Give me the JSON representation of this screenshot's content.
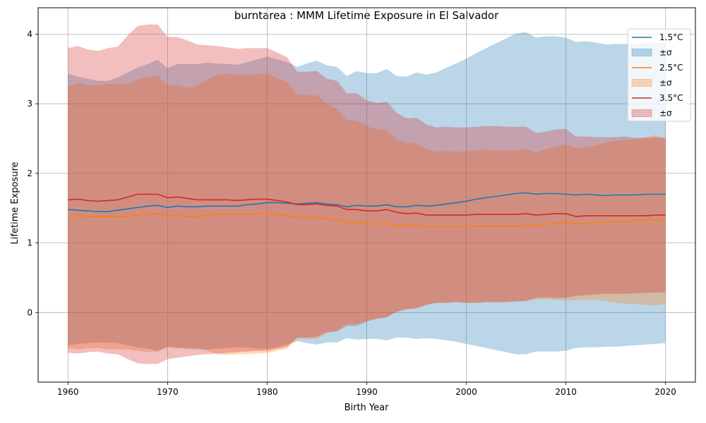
{
  "chart_data": {
    "type": "area",
    "title": "burntarea : MMM Lifetime Exposure in El Salvador",
    "xlabel": "Birth Year",
    "ylabel": "Lifetime Exposure",
    "xlim": [
      1957,
      2023
    ],
    "ylim": [
      -1.0,
      4.38
    ],
    "xticks": [
      1960,
      1970,
      1980,
      1990,
      2000,
      2010,
      2020
    ],
    "xtick_labels": [
      "1960",
      "1970",
      "1980",
      "1990",
      "2000",
      "2010",
      "2020"
    ],
    "yticks": [
      0,
      1,
      2,
      3,
      4
    ],
    "ytick_labels": [
      "0",
      "1",
      "2",
      "3",
      "4"
    ],
    "grid": true,
    "legend_position": "top-right",
    "legend": [
      {
        "label": "1.5°C",
        "kind": "line",
        "color": "#1f77b4"
      },
      {
        "label": "±σ",
        "kind": "patch",
        "color": "#1f77b4"
      },
      {
        "label": "2.5°C",
        "kind": "line",
        "color": "#ff7f0e"
      },
      {
        "label": "±σ",
        "kind": "patch",
        "color": "#ff7f0e"
      },
      {
        "label": "3.5°C",
        "kind": "line",
        "color": "#d62728"
      },
      {
        "label": "±σ",
        "kind": "patch",
        "color": "#d62728"
      }
    ],
    "x": [
      1960,
      1961,
      1962,
      1963,
      1964,
      1965,
      1966,
      1967,
      1968,
      1969,
      1970,
      1971,
      1972,
      1973,
      1974,
      1975,
      1976,
      1977,
      1978,
      1979,
      1980,
      1981,
      1982,
      1983,
      1984,
      1985,
      1986,
      1987,
      1988,
      1989,
      1990,
      1991,
      1992,
      1993,
      1994,
      1995,
      1996,
      1997,
      1998,
      1999,
      2000,
      2001,
      2002,
      2003,
      2004,
      2005,
      2006,
      2007,
      2008,
      2009,
      2010,
      2011,
      2012,
      2013,
      2014,
      2015,
      2016,
      2017,
      2018,
      2019,
      2020
    ],
    "series": [
      {
        "name": "1.5°C",
        "color": "#1f77b4",
        "mean": [
          1.48,
          1.47,
          1.46,
          1.45,
          1.45,
          1.47,
          1.49,
          1.51,
          1.53,
          1.54,
          1.51,
          1.53,
          1.52,
          1.52,
          1.53,
          1.53,
          1.53,
          1.53,
          1.55,
          1.56,
          1.58,
          1.58,
          1.57,
          1.56,
          1.57,
          1.58,
          1.56,
          1.55,
          1.52,
          1.54,
          1.53,
          1.53,
          1.55,
          1.52,
          1.52,
          1.54,
          1.53,
          1.54,
          1.56,
          1.58,
          1.6,
          1.63,
          1.65,
          1.67,
          1.69,
          1.71,
          1.72,
          1.7,
          1.71,
          1.71,
          1.7,
          1.69,
          1.7,
          1.69,
          1.68,
          1.69,
          1.69,
          1.69,
          1.7,
          1.7,
          1.7
        ],
        "upper": [
          3.43,
          3.39,
          3.36,
          3.33,
          3.33,
          3.38,
          3.45,
          3.52,
          3.57,
          3.63,
          3.51,
          3.57,
          3.57,
          3.57,
          3.59,
          3.58,
          3.57,
          3.56,
          3.6,
          3.64,
          3.68,
          3.64,
          3.6,
          3.53,
          3.58,
          3.62,
          3.55,
          3.53,
          3.4,
          3.47,
          3.44,
          3.44,
          3.5,
          3.4,
          3.39,
          3.45,
          3.42,
          3.45,
          3.52,
          3.58,
          3.65,
          3.73,
          3.8,
          3.87,
          3.94,
          4.01,
          4.03,
          3.95,
          3.97,
          3.97,
          3.95,
          3.89,
          3.9,
          3.88,
          3.85,
          3.86,
          3.86,
          3.86,
          3.87,
          3.87,
          3.87
        ],
        "lower": [
          -0.47,
          -0.45,
          -0.44,
          -0.43,
          -0.43,
          -0.44,
          -0.47,
          -0.5,
          -0.52,
          -0.55,
          -0.49,
          -0.51,
          -0.52,
          -0.53,
          -0.53,
          -0.52,
          -0.51,
          -0.5,
          -0.5,
          -0.52,
          -0.52,
          -0.5,
          -0.46,
          -0.41,
          -0.44,
          -0.46,
          -0.43,
          -0.43,
          -0.37,
          -0.39,
          -0.38,
          -0.38,
          -0.4,
          -0.36,
          -0.36,
          -0.38,
          -0.37,
          -0.38,
          -0.4,
          -0.42,
          -0.45,
          -0.48,
          -0.51,
          -0.54,
          -0.57,
          -0.6,
          -0.6,
          -0.56,
          -0.56,
          -0.56,
          -0.55,
          -0.51,
          -0.5,
          -0.5,
          -0.49,
          -0.49,
          -0.48,
          -0.47,
          -0.46,
          -0.45,
          -0.44
        ]
      },
      {
        "name": "2.5°C",
        "color": "#ff7f0e",
        "mean": [
          1.37,
          1.39,
          1.38,
          1.38,
          1.38,
          1.38,
          1.38,
          1.4,
          1.41,
          1.42,
          1.39,
          1.39,
          1.38,
          1.38,
          1.4,
          1.41,
          1.41,
          1.41,
          1.41,
          1.42,
          1.42,
          1.41,
          1.39,
          1.37,
          1.37,
          1.37,
          1.35,
          1.33,
          1.3,
          1.3,
          1.28,
          1.27,
          1.28,
          1.25,
          1.25,
          1.25,
          1.23,
          1.23,
          1.23,
          1.23,
          1.23,
          1.24,
          1.24,
          1.24,
          1.24,
          1.24,
          1.25,
          1.25,
          1.27,
          1.28,
          1.29,
          1.27,
          1.28,
          1.29,
          1.3,
          1.31,
          1.31,
          1.32,
          1.33,
          1.33,
          1.33
        ],
        "upper": [
          3.25,
          3.3,
          3.27,
          3.26,
          3.29,
          3.29,
          3.29,
          3.35,
          3.39,
          3.4,
          3.27,
          3.27,
          3.23,
          3.26,
          3.35,
          3.42,
          3.43,
          3.41,
          3.42,
          3.43,
          3.43,
          3.37,
          3.31,
          3.13,
          3.13,
          3.12,
          3.0,
          2.93,
          2.76,
          2.76,
          2.68,
          2.63,
          2.63,
          2.49,
          2.44,
          2.43,
          2.35,
          2.31,
          2.32,
          2.31,
          2.32,
          2.33,
          2.34,
          2.33,
          2.33,
          2.32,
          2.35,
          2.3,
          2.35,
          2.38,
          2.42,
          2.36,
          2.38,
          2.4,
          2.44,
          2.47,
          2.48,
          2.49,
          2.52,
          2.55,
          2.5
        ],
        "lower": [
          -0.51,
          -0.53,
          -0.51,
          -0.51,
          -0.53,
          -0.53,
          -0.53,
          -0.55,
          -0.57,
          -0.56,
          -0.5,
          -0.51,
          -0.51,
          -0.51,
          -0.55,
          -0.6,
          -0.61,
          -0.6,
          -0.6,
          -0.59,
          -0.58,
          -0.55,
          -0.52,
          -0.38,
          -0.38,
          -0.38,
          -0.3,
          -0.27,
          -0.16,
          -0.16,
          -0.12,
          -0.09,
          -0.07,
          0.01,
          0.05,
          0.06,
          0.11,
          0.14,
          0.14,
          0.15,
          0.14,
          0.14,
          0.15,
          0.15,
          0.15,
          0.16,
          0.16,
          0.19,
          0.19,
          0.18,
          0.17,
          0.18,
          0.18,
          0.18,
          0.16,
          0.14,
          0.13,
          0.12,
          0.11,
          0.1,
          0.12
        ]
      },
      {
        "name": "3.5°C",
        "color": "#d62728",
        "mean": [
          1.62,
          1.63,
          1.61,
          1.6,
          1.61,
          1.62,
          1.66,
          1.7,
          1.7,
          1.7,
          1.65,
          1.66,
          1.64,
          1.62,
          1.62,
          1.62,
          1.62,
          1.61,
          1.62,
          1.63,
          1.63,
          1.61,
          1.59,
          1.55,
          1.55,
          1.56,
          1.54,
          1.53,
          1.48,
          1.48,
          1.46,
          1.46,
          1.48,
          1.44,
          1.42,
          1.43,
          1.4,
          1.4,
          1.4,
          1.4,
          1.4,
          1.41,
          1.41,
          1.41,
          1.41,
          1.41,
          1.42,
          1.4,
          1.41,
          1.42,
          1.42,
          1.38,
          1.39,
          1.39,
          1.39,
          1.39,
          1.39,
          1.39,
          1.39,
          1.4,
          1.4
        ],
        "upper": [
          3.8,
          3.83,
          3.78,
          3.76,
          3.8,
          3.82,
          3.98,
          4.12,
          4.14,
          4.14,
          3.96,
          3.96,
          3.91,
          3.85,
          3.84,
          3.83,
          3.81,
          3.79,
          3.8,
          3.8,
          3.8,
          3.74,
          3.67,
          3.46,
          3.46,
          3.47,
          3.36,
          3.33,
          3.15,
          3.15,
          3.05,
          3.01,
          3.03,
          2.87,
          2.79,
          2.8,
          2.7,
          2.66,
          2.67,
          2.66,
          2.66,
          2.67,
          2.68,
          2.68,
          2.67,
          2.67,
          2.67,
          2.58,
          2.6,
          2.63,
          2.64,
          2.53,
          2.53,
          2.52,
          2.52,
          2.52,
          2.53,
          2.51,
          2.51,
          2.52,
          2.51
        ],
        "lower": [
          -0.58,
          -0.59,
          -0.57,
          -0.56,
          -0.59,
          -0.6,
          -0.67,
          -0.73,
          -0.74,
          -0.74,
          -0.67,
          -0.65,
          -0.63,
          -0.61,
          -0.6,
          -0.59,
          -0.58,
          -0.57,
          -0.56,
          -0.55,
          -0.55,
          -0.52,
          -0.49,
          -0.36,
          -0.36,
          -0.35,
          -0.28,
          -0.27,
          -0.19,
          -0.19,
          -0.13,
          -0.09,
          -0.07,
          0.01,
          0.05,
          0.06,
          0.11,
          0.14,
          0.14,
          0.15,
          0.14,
          0.14,
          0.15,
          0.15,
          0.15,
          0.16,
          0.17,
          0.21,
          0.22,
          0.21,
          0.21,
          0.24,
          0.25,
          0.26,
          0.27,
          0.27,
          0.27,
          0.28,
          0.28,
          0.29,
          0.29
        ]
      }
    ]
  }
}
